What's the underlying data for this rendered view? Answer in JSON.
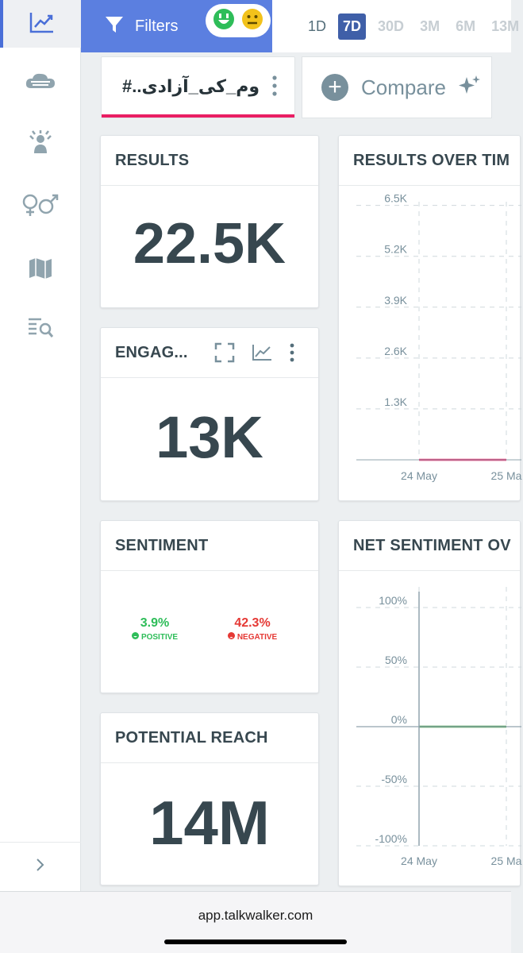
{
  "sidebar": {
    "items": [
      {
        "icon": "trend-chart-icon",
        "active": true
      },
      {
        "icon": "cloud-topics-icon"
      },
      {
        "icon": "influencer-icon"
      },
      {
        "icon": "gender-icon"
      },
      {
        "icon": "map-icon"
      },
      {
        "icon": "search-list-icon"
      }
    ],
    "expand_icon": "chevron-right-icon"
  },
  "topbar": {
    "filters_label": "Filters",
    "sentiment_icons": [
      "positive-face-icon",
      "neutral-face-icon"
    ],
    "ranges": [
      "1D",
      "7D",
      "30D",
      "3M",
      "6M",
      "13M"
    ],
    "active_range": "7D"
  },
  "query": {
    "tab_text": "#..وم_کی_آزادی",
    "compare_label": "Compare"
  },
  "cards": {
    "results": {
      "title": "RESULTS",
      "value": "22.5K"
    },
    "engagement": {
      "title": "ENGAG...",
      "value": "13K"
    },
    "sentiment": {
      "title": "SENTIMENT",
      "positive_pct": "3.9%",
      "positive_label": "POSITIVE",
      "negative_pct": "42.3%",
      "negative_label": "NEGATIVE"
    },
    "reach": {
      "title": "POTENTIAL REACH",
      "value": "14M"
    },
    "results_over_time": {
      "title": "RESULTS OVER TIM"
    },
    "net_sentiment": {
      "title": "NET SENTIMENT OV"
    }
  },
  "colors": {
    "accent": "#5b7fe0",
    "active_range": "#3f5fa8",
    "query_underline": "#e91e63",
    "positive": "#2ebd59",
    "negative": "#e53935"
  },
  "chart_data": [
    {
      "type": "line",
      "title": "RESULTS OVER TIM",
      "x": [
        "24 May",
        "25 Ma"
      ],
      "yticks": [
        "1.3K",
        "2.6K",
        "3.9K",
        "5.2K",
        "6.5K"
      ],
      "ylim": [
        0,
        7000
      ],
      "series": [
        {
          "values": [
            0,
            0
          ],
          "color": "#e91e63"
        }
      ],
      "grid": true
    },
    {
      "type": "line",
      "title": "NET SENTIMENT OV",
      "x": [
        "24 May",
        "25 Ma"
      ],
      "yticks": [
        "-100%",
        "-50%",
        "0%",
        "50%",
        "100%"
      ],
      "ylim": [
        -100,
        100
      ],
      "series": [
        {
          "values": [
            0,
            0
          ],
          "color": "#43a047"
        }
      ],
      "grid": true
    }
  ],
  "browser": {
    "url": "app.talkwalker.com"
  }
}
